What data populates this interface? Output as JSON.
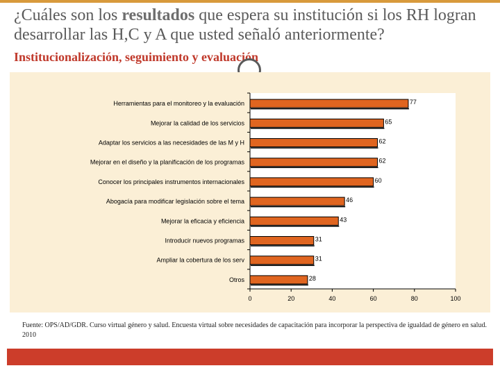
{
  "header": {
    "title_part1": "¿Cuáles son los ",
    "title_bold": "resultados",
    "title_part2": " que espera su institución si los RH logran desarrollar las H,C y A que  usted señaló anteriormente?",
    "subtitle": "Institucionalización, seguimiento y evaluación"
  },
  "chart_data": {
    "type": "bar",
    "orientation": "horizontal",
    "categories": [
      "Herramientas para el monitoreo y la evaluación",
      "Mejorar la calidad de los servicios",
      "Adaptar los servicios a las necesidades de las M y H",
      "Mejorar en el diseño y la planificación de los programas",
      "Conocer los principales instrumentos internacionales",
      "Abogacía para modificar legislación sobre el tema",
      "Mejorar la eficacia y eficiencia",
      "Introducir nuevos programas",
      "Ampliar la cobertura de los serv",
      "Otros"
    ],
    "values": [
      77,
      65,
      62,
      62,
      60,
      46,
      43,
      31,
      31,
      28
    ],
    "value_labels": [
      "77",
      "65",
      "62",
      "62",
      "60",
      "46",
      "43",
      "31",
      "31",
      "28"
    ],
    "xticks": [
      "0",
      "20",
      "40",
      "60",
      "80",
      "100"
    ],
    "xlim": [
      0,
      100
    ],
    "title": "",
    "xlabel": "",
    "ylabel": "",
    "colors": {
      "bar": "#e06520",
      "bar_edge": "#000000",
      "panel": "#fbefd6",
      "plot": "#ffffff"
    }
  },
  "footer": {
    "source": "Fuente: OPS/AD/GDR. Curso virtual género y salud. Encuesta virtual sobre necesidades de capacitación para incorporar la perspectiva de igualdad de género en salud. 2010"
  },
  "colors": {
    "accent_bar": "#cc3d2a",
    "top_rule": "#d89a3c",
    "subtitle": "#c0392b"
  }
}
